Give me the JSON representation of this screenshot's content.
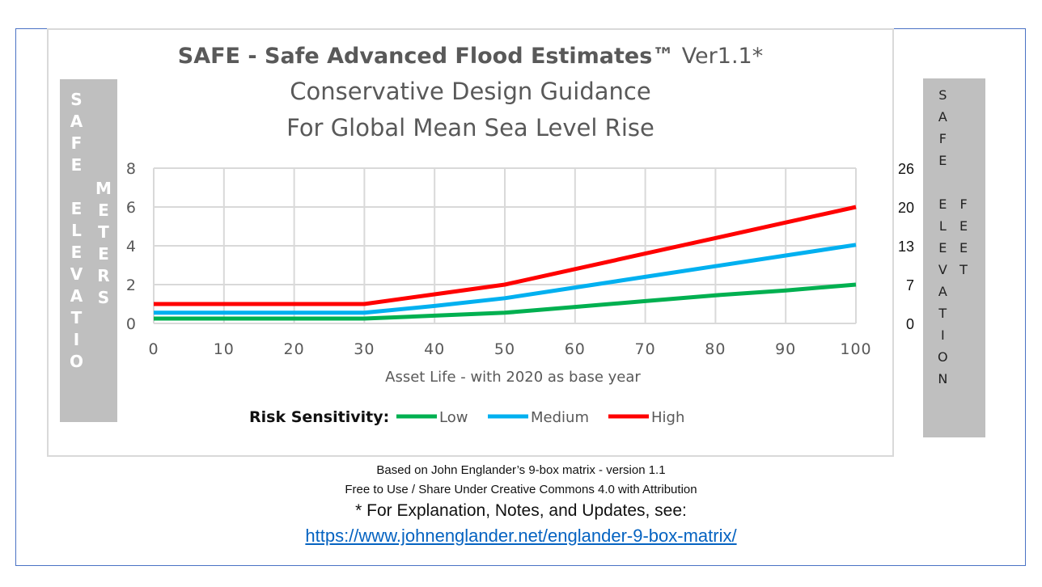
{
  "chart_data": {
    "type": "line",
    "title": "SAFE - Safe Advanced Flood Estimates™",
    "title_version": "Ver1.1*",
    "subtitle_lines": [
      "Conservative Design Guidance",
      "For Global Mean Sea Level Rise"
    ],
    "xlabel": "Asset Life - with 2020 as base year",
    "ylabel_left": [
      "S",
      "A",
      "F",
      "E",
      "",
      "E",
      "L",
      "E",
      "V",
      "A",
      "T",
      "I",
      "O"
    ],
    "ylabel_left_units": [
      "M",
      "E",
      "T",
      "E",
      "R",
      "S"
    ],
    "ylabel_right": [
      "S",
      "A",
      "F",
      "E",
      "",
      "E",
      "L",
      "E",
      "V",
      "A",
      "T",
      "I",
      "O",
      "N"
    ],
    "ylabel_right_units": [
      "F",
      "E",
      "E",
      "T"
    ],
    "x": [
      0,
      10,
      20,
      30,
      40,
      50,
      60,
      70,
      80,
      90,
      100
    ],
    "x_ticks": [
      "0",
      "10",
      "20",
      "30",
      "40",
      "50",
      "60",
      "70",
      "80",
      "90",
      "100"
    ],
    "y_ticks": [
      "0",
      "2",
      "4",
      "6",
      "8"
    ],
    "y_right_ticks": [
      "0",
      "7",
      "13",
      "20",
      "26"
    ],
    "xlim": [
      0,
      100
    ],
    "ylim": [
      0,
      8
    ],
    "grid": true,
    "legend_title": "Risk Sensitivity:",
    "legend_position": "bottom",
    "series": [
      {
        "name": "Low",
        "color": "#00b050",
        "values": [
          0.25,
          0.25,
          0.25,
          0.25,
          0.4,
          0.55,
          0.85,
          1.15,
          1.45,
          1.7,
          2.0
        ]
      },
      {
        "name": "Medium",
        "color": "#00b0f0",
        "values": [
          0.55,
          0.55,
          0.55,
          0.55,
          0.9,
          1.3,
          1.85,
          2.4,
          2.95,
          3.5,
          4.05
        ]
      },
      {
        "name": "High",
        "color": "#ff0000",
        "values": [
          1.0,
          1.0,
          1.0,
          1.0,
          1.5,
          2.0,
          2.8,
          3.6,
          4.4,
          5.2,
          6.0
        ]
      }
    ]
  },
  "footer": {
    "line1": "Based on John Englander’s 9-box matrix - version 1.1",
    "line2": "Free to Use / Share Under Creative Commons 4.0 with Attribution",
    "line3": "* For Explanation, Notes, and Updates, see:",
    "link": "https://www.johnenglander.net/englander-9-box-matrix/"
  }
}
